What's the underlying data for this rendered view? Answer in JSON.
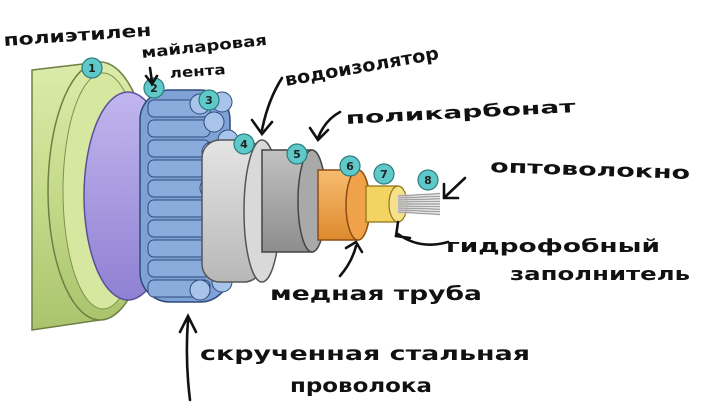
{
  "colors": {
    "polyethylene": "#c9de8f",
    "mylar": "#a99be0",
    "steel_wire": "#7fa3d6",
    "water_barrier": "#cfcfcf",
    "polycarbonate": "#a8a8a8",
    "copper_tube": "#f2a24a",
    "gel": "#f4d766",
    "fiber": "#e8e8e8",
    "badge": "#5fc8c8",
    "ink": "#111111"
  },
  "badges": [
    "1",
    "2",
    "3",
    "4",
    "5",
    "6",
    "7",
    "8"
  ],
  "labels": {
    "polyethylene": "полиэтилен",
    "mylar_line1": "майларовая",
    "mylar_line2": "лента",
    "stranded_wire_line1": "скрученная стальная",
    "stranded_wire_line2": "проволока",
    "water_barrier": "водоизолятор",
    "polycarbonate": "поликарбонат",
    "copper_tube": "медная труба",
    "gel_line1": "гидрофобный",
    "gel_line2": "заполнитель",
    "fiber": "оптоволокно"
  },
  "icons": {
    "arrow": "hand-drawn-arrow-icon"
  }
}
